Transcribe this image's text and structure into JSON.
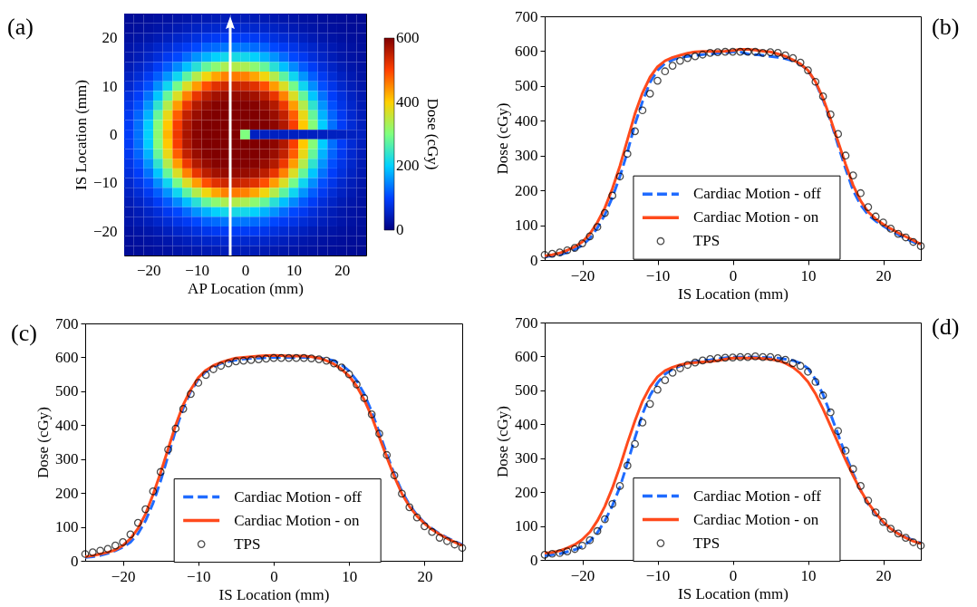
{
  "chart_data": [
    {
      "type": "heatmap",
      "title": "(a)",
      "xlabel": "AP Location (mm)",
      "ylabel": "IS Location (mm)",
      "clabel": "Dose (cGy)",
      "x": [
        -24,
        -22,
        -20,
        -18,
        -16,
        -14,
        -12,
        -10,
        -8,
        -6,
        -4,
        -2,
        0,
        2,
        4,
        6,
        8,
        10,
        12,
        14,
        16,
        18,
        20,
        22,
        24
      ],
      "y": [
        24,
        22,
        20,
        18,
        16,
        14,
        12,
        10,
        8,
        6,
        4,
        2,
        0,
        -2,
        -4,
        -6,
        -8,
        -10,
        -12,
        -14,
        -16,
        -18,
        -20,
        -22,
        -24
      ],
      "cells": [
        [
          19,
          20,
          22,
          25,
          27,
          31,
          34,
          38,
          41,
          43,
          45,
          45,
          45,
          43,
          41,
          38,
          34,
          31,
          27,
          25,
          22,
          20,
          19,
          17,
          15
        ],
        [
          21,
          24,
          27,
          31,
          35,
          41,
          47,
          53,
          58,
          61,
          63,
          65,
          63,
          61,
          58,
          53,
          47,
          41,
          35,
          31,
          27,
          24,
          21,
          19,
          18
        ],
        [
          25,
          29,
          34,
          41,
          49,
          58,
          66,
          75,
          85,
          91,
          94,
          95,
          94,
          91,
          85,
          75,
          66,
          58,
          49,
          41,
          34,
          29,
          25,
          22,
          20
        ],
        [
          32,
          39,
          47,
          58,
          68,
          81,
          92,
          105,
          122,
          130,
          137,
          140,
          137,
          130,
          122,
          105,
          92,
          81,
          68,
          58,
          47,
          39,
          32,
          27,
          23
        ],
        [
          34,
          43,
          56,
          71,
          89,
          105,
          130,
          157,
          180,
          202,
          215,
          220,
          215,
          202,
          180,
          157,
          130,
          105,
          89,
          71,
          56,
          43,
          34,
          28,
          24
        ],
        [
          42,
          55,
          71,
          93,
          118,
          151,
          189,
          232,
          280,
          310,
          334,
          340,
          334,
          310,
          280,
          232,
          189,
          151,
          118,
          93,
          71,
          55,
          42,
          33,
          27
        ],
        [
          52,
          68,
          90,
          120,
          158,
          211,
          274,
          340,
          388,
          430,
          455,
          460,
          455,
          430,
          388,
          340,
          274,
          211,
          158,
          120,
          90,
          68,
          52,
          39,
          29
        ],
        [
          61,
          83,
          110,
          154,
          211,
          292,
          370,
          436,
          490,
          524,
          538,
          545,
          538,
          524,
          490,
          436,
          370,
          292,
          211,
          154,
          110,
          83,
          61,
          45,
          34
        ],
        [
          73,
          96,
          135,
          193,
          280,
          370,
          454,
          517,
          553,
          573,
          582,
          585,
          582,
          573,
          553,
          517,
          454,
          370,
          280,
          193,
          135,
          96,
          73,
          53,
          39
        ],
        [
          81,
          110,
          158,
          238,
          340,
          436,
          513,
          560,
          583,
          595,
          598,
          600,
          598,
          595,
          583,
          560,
          513,
          436,
          340,
          238,
          158,
          110,
          81,
          59,
          42
        ],
        [
          89,
          125,
          180,
          280,
          382,
          480,
          548,
          580,
          596,
          600,
          600,
          600,
          600,
          600,
          596,
          580,
          548,
          480,
          382,
          280,
          180,
          125,
          89,
          63,
          46
        ],
        [
          94,
          133,
          198,
          305,
          405,
          505,
          562,
          590,
          600,
          600,
          600,
          600,
          600,
          600,
          600,
          590,
          562,
          505,
          405,
          305,
          198,
          133,
          94,
          67,
          49
        ],
        [
          95,
          135,
          202,
          310,
          418,
          513,
          568,
          593,
          600,
          600,
          600,
          600,
          300,
          50,
          50,
          50,
          50,
          50,
          50,
          50,
          50,
          50,
          50,
          50,
          50
        ],
        [
          94,
          133,
          198,
          305,
          405,
          505,
          562,
          590,
          600,
          600,
          600,
          600,
          600,
          600,
          600,
          590,
          562,
          505,
          405,
          305,
          198,
          133,
          94,
          67,
          49
        ],
        [
          89,
          125,
          180,
          280,
          382,
          480,
          548,
          580,
          596,
          600,
          600,
          600,
          600,
          600,
          596,
          580,
          548,
          480,
          382,
          280,
          180,
          125,
          89,
          63,
          46
        ],
        [
          81,
          110,
          158,
          238,
          340,
          436,
          513,
          560,
          583,
          595,
          598,
          600,
          598,
          595,
          583,
          560,
          513,
          436,
          340,
          238,
          158,
          110,
          81,
          59,
          42
        ],
        [
          73,
          96,
          135,
          193,
          280,
          370,
          454,
          517,
          553,
          573,
          582,
          585,
          582,
          573,
          553,
          517,
          454,
          370,
          280,
          193,
          135,
          96,
          73,
          53,
          39
        ],
        [
          61,
          83,
          110,
          154,
          211,
          292,
          370,
          436,
          490,
          524,
          538,
          545,
          538,
          524,
          490,
          436,
          370,
          292,
          211,
          154,
          110,
          83,
          61,
          45,
          34
        ],
        [
          52,
          68,
          90,
          120,
          158,
          211,
          274,
          340,
          388,
          430,
          455,
          460,
          455,
          430,
          388,
          340,
          274,
          211,
          158,
          120,
          90,
          68,
          52,
          39,
          29
        ],
        [
          42,
          55,
          71,
          93,
          118,
          151,
          189,
          232,
          280,
          310,
          334,
          340,
          334,
          310,
          280,
          232,
          189,
          151,
          118,
          93,
          71,
          55,
          42,
          33,
          27
        ],
        [
          34,
          43,
          56,
          71,
          89,
          105,
          130,
          157,
          180,
          202,
          215,
          220,
          215,
          202,
          180,
          157,
          130,
          105,
          89,
          71,
          56,
          43,
          34,
          28,
          24
        ],
        [
          32,
          39,
          47,
          58,
          68,
          81,
          92,
          105,
          122,
          130,
          137,
          140,
          137,
          130,
          122,
          105,
          92,
          81,
          68,
          58,
          47,
          39,
          32,
          27,
          23
        ],
        [
          25,
          29,
          34,
          41,
          49,
          58,
          66,
          75,
          85,
          91,
          94,
          95,
          94,
          91,
          85,
          75,
          66,
          58,
          49,
          41,
          34,
          29,
          25,
          22,
          20
        ],
        [
          21,
          24,
          27,
          31,
          35,
          41,
          47,
          53,
          58,
          61,
          63,
          65,
          63,
          61,
          58,
          53,
          47,
          41,
          35,
          31,
          27,
          24,
          21,
          19,
          18
        ],
        [
          19,
          20,
          22,
          25,
          27,
          31,
          34,
          38,
          41,
          43,
          45,
          45,
          45,
          43,
          41,
          38,
          34,
          31,
          27,
          25,
          22,
          20,
          19,
          17,
          15
        ]
      ],
      "xlim": [
        -25,
        25
      ],
      "xticks": [
        -20,
        -10,
        0,
        10,
        20
      ],
      "ylim": [
        -25,
        25
      ],
      "yticks": [
        -20,
        -10,
        0,
        10,
        20
      ],
      "clim": [
        0,
        600
      ],
      "cticks": [
        0,
        200,
        400,
        600
      ]
    },
    {
      "type": "line",
      "title": "(b)",
      "xlabel": "IS Location (mm)",
      "ylabel": "Dose (cGy)",
      "legend": "bottom",
      "x": [
        -25,
        -24,
        -23,
        -22,
        -21,
        -20,
        -19,
        -18,
        -17,
        -16,
        -15,
        -14,
        -13,
        -12,
        -11,
        -10,
        -9,
        -8,
        -7,
        -6,
        -5,
        -4,
        -3,
        -2,
        -1,
        0,
        1,
        2,
        3,
        4,
        5,
        6,
        7,
        8,
        9,
        10,
        11,
        12,
        13,
        14,
        15,
        16,
        17,
        18,
        19,
        20,
        21,
        22,
        23,
        24,
        25
      ],
      "xlim": [
        -25,
        25
      ],
      "xticks": [
        -20,
        -10,
        0,
        10,
        20
      ],
      "ylim": [
        0,
        700
      ],
      "yticks": [
        0,
        100,
        200,
        300,
        400,
        500,
        600,
        700
      ],
      "series": [
        {
          "name": "Cardiac Motion - off",
          "type": "line",
          "color": "#1f6bff",
          "line_style": "dashed",
          "values": [
            10,
            12,
            15,
            22,
            30,
            42,
            62,
            92,
            130,
            180,
            240,
            310,
            390,
            455,
            510,
            545,
            565,
            575,
            582,
            585,
            588,
            590,
            592,
            594,
            596,
            598,
            597,
            592,
            590,
            588,
            585,
            582,
            578,
            572,
            562,
            545,
            510,
            460,
            400,
            330,
            262,
            200,
            158,
            130,
            112,
            98,
            85,
            73,
            62,
            52,
            42
          ]
        },
        {
          "name": "Cardiac Motion - on",
          "type": "line",
          "color": "#ff4a1c",
          "line_style": "solid",
          "values": [
            12,
            15,
            20,
            28,
            38,
            52,
            75,
            108,
            150,
            205,
            270,
            345,
            420,
            480,
            525,
            555,
            572,
            582,
            588,
            594,
            598,
            599,
            599,
            599,
            600,
            602,
            605,
            605,
            603,
            600,
            598,
            592,
            585,
            575,
            563,
            545,
            512,
            465,
            405,
            340,
            275,
            215,
            170,
            138,
            118,
            103,
            90,
            78,
            67,
            57,
            45
          ]
        },
        {
          "name": "TPS",
          "type": "scatter",
          "color": "#000000",
          "marker": "circle",
          "values": [
            15,
            18,
            22,
            28,
            35,
            48,
            68,
            95,
            135,
            185,
            240,
            305,
            370,
            430,
            478,
            515,
            542,
            558,
            572,
            580,
            585,
            590,
            595,
            597,
            598,
            598,
            598,
            598,
            598,
            595,
            597,
            595,
            588,
            580,
            567,
            545,
            512,
            470,
            418,
            362,
            300,
            243,
            192,
            152,
            125,
            108,
            90,
            75,
            65,
            52,
            40
          ]
        }
      ]
    },
    {
      "type": "line",
      "title": "(c)",
      "xlabel": "IS Location (mm)",
      "ylabel": "Dose (cGy)",
      "legend": "bottom",
      "x": [
        -25,
        -24,
        -23,
        -22,
        -21,
        -20,
        -19,
        -18,
        -17,
        -16,
        -15,
        -14,
        -13,
        -12,
        -11,
        -10,
        -9,
        -8,
        -7,
        -6,
        -5,
        -4,
        -3,
        -2,
        -1,
        0,
        1,
        2,
        3,
        4,
        5,
        6,
        7,
        8,
        9,
        10,
        11,
        12,
        13,
        14,
        15,
        16,
        17,
        18,
        19,
        20,
        21,
        22,
        23,
        24,
        25
      ],
      "xlim": [
        -25,
        25
      ],
      "xticks": [
        -20,
        -10,
        0,
        10,
        20
      ],
      "ylim": [
        0,
        700
      ],
      "yticks": [
        0,
        100,
        200,
        300,
        400,
        500,
        600,
        700
      ],
      "series": [
        {
          "name": "Cardiac Motion - off",
          "type": "line",
          "color": "#1f6bff",
          "line_style": "dashed",
          "values": [
            10,
            12,
            16,
            22,
            30,
            40,
            55,
            80,
            118,
            170,
            235,
            310,
            385,
            450,
            500,
            535,
            558,
            572,
            582,
            588,
            592,
            595,
            597,
            598,
            599,
            600,
            600,
            600,
            600,
            600,
            600,
            598,
            595,
            590,
            578,
            560,
            532,
            492,
            440,
            378,
            315,
            255,
            205,
            165,
            135,
            112,
            95,
            80,
            68,
            57,
            48
          ]
        },
        {
          "name": "Cardiac Motion - on",
          "type": "line",
          "color": "#ff4a1c",
          "line_style": "solid",
          "values": [
            12,
            15,
            20,
            25,
            32,
            45,
            65,
            95,
            138,
            195,
            260,
            330,
            400,
            460,
            505,
            540,
            562,
            576,
            585,
            592,
            598,
            600,
            602,
            604,
            605,
            606,
            605,
            604,
            604,
            604,
            602,
            598,
            590,
            580,
            565,
            545,
            515,
            475,
            425,
            365,
            305,
            248,
            198,
            160,
            132,
            110,
            92,
            78,
            66,
            55,
            45
          ]
        },
        {
          "name": "TPS",
          "type": "scatter",
          "color": "#000000",
          "marker": "circle",
          "values": [
            20,
            25,
            30,
            35,
            45,
            55,
            78,
            112,
            152,
            205,
            262,
            328,
            390,
            448,
            492,
            525,
            548,
            565,
            575,
            582,
            588,
            590,
            592,
            594,
            596,
            598,
            598,
            598,
            598,
            598,
            597,
            594,
            590,
            582,
            570,
            550,
            520,
            480,
            432,
            375,
            312,
            252,
            198,
            158,
            128,
            102,
            85,
            68,
            58,
            48,
            38
          ]
        }
      ]
    },
    {
      "type": "line",
      "title": "(d)",
      "xlabel": "IS Location (mm)",
      "ylabel": "Dose (cGy)",
      "legend": "bottom",
      "x": [
        -25,
        -24,
        -23,
        -22,
        -21,
        -20,
        -19,
        -18,
        -17,
        -16,
        -15,
        -14,
        -13,
        -12,
        -11,
        -10,
        -9,
        -8,
        -7,
        -6,
        -5,
        -4,
        -3,
        -2,
        -1,
        0,
        1,
        2,
        3,
        4,
        5,
        6,
        7,
        8,
        9,
        10,
        11,
        12,
        13,
        14,
        15,
        16,
        17,
        18,
        19,
        20,
        21,
        22,
        23,
        24,
        25
      ],
      "xlim": [
        -25,
        25
      ],
      "xticks": [
        -20,
        -10,
        0,
        10,
        20
      ],
      "ylim": [
        0,
        700
      ],
      "yticks": [
        0,
        100,
        200,
        300,
        400,
        500,
        600,
        700
      ],
      "series": [
        {
          "name": "Cardiac Motion - off",
          "type": "line",
          "color": "#1f6bff",
          "line_style": "dashed",
          "values": [
            12,
            15,
            18,
            24,
            30,
            40,
            55,
            80,
            115,
            160,
            215,
            285,
            360,
            430,
            485,
            522,
            548,
            562,
            572,
            580,
            585,
            588,
            590,
            593,
            596,
            598,
            598,
            598,
            598,
            597,
            596,
            595,
            592,
            588,
            580,
            565,
            532,
            488,
            430,
            370,
            310,
            255,
            205,
            165,
            135,
            110,
            92,
            78,
            67,
            58,
            50
          ]
        },
        {
          "name": "Cardiac Motion - on",
          "type": "line",
          "color": "#ff4a1c",
          "line_style": "solid",
          "values": [
            20,
            22,
            27,
            35,
            45,
            60,
            82,
            115,
            158,
            212,
            275,
            345,
            410,
            468,
            510,
            540,
            558,
            568,
            575,
            580,
            582,
            584,
            585,
            588,
            592,
            595,
            595,
            595,
            595,
            594,
            592,
            588,
            580,
            568,
            550,
            525,
            490,
            445,
            395,
            345,
            295,
            248,
            205,
            168,
            138,
            112,
            92,
            77,
            65,
            55,
            48
          ]
        },
        {
          "name": "TPS",
          "type": "scatter",
          "color": "#000000",
          "marker": "circle",
          "values": [
            15,
            18,
            20,
            25,
            32,
            42,
            58,
            85,
            120,
            165,
            218,
            278,
            342,
            405,
            460,
            502,
            530,
            552,
            565,
            575,
            582,
            588,
            592,
            595,
            596,
            597,
            598,
            598,
            600,
            598,
            598,
            595,
            590,
            580,
            572,
            555,
            525,
            485,
            435,
            380,
            322,
            268,
            218,
            175,
            140,
            112,
            92,
            78,
            65,
            52,
            42
          ]
        }
      ]
    }
  ]
}
